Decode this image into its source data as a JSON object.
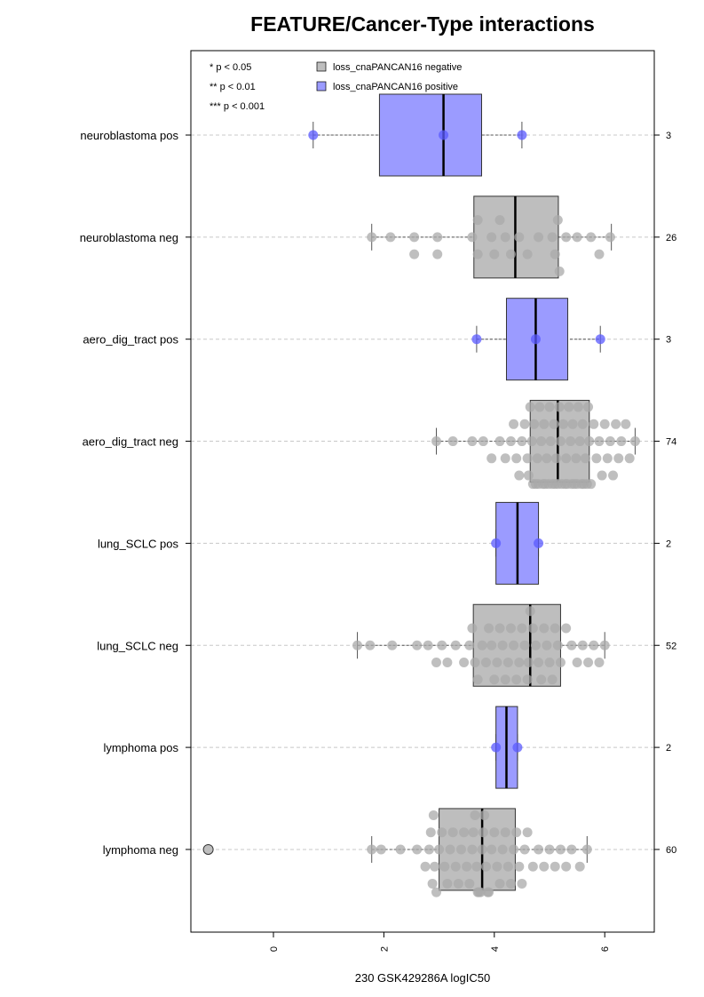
{
  "chart_data": {
    "type": "box",
    "title": "FEATURE/Cancer-Type interactions",
    "xlabel": "230 GSK429286A logIC50",
    "ylabel": "",
    "xlim": [
      -1.5,
      6.9
    ],
    "xticks": [
      0,
      2,
      4,
      6
    ],
    "grid": "horizontal dashed",
    "legend_position": "top-left",
    "significance_legend": [
      "* p < 0.05",
      "** p < 0.01",
      "*** p < 0.001"
    ],
    "series": [
      {
        "name": "loss_cnaPANCAN16 negative",
        "color": "#bebebe"
      },
      {
        "name": "loss_cnaPANCAN16 positive",
        "color": "#9b9bff"
      }
    ],
    "groups": [
      {
        "label": "neuroblastoma pos",
        "n": "3",
        "series": "positive",
        "whisker_low": 0.72,
        "q1": 1.92,
        "median": 3.08,
        "q3": 3.77,
        "whisker_high": 4.5,
        "outliers": [],
        "points": [
          0.72,
          3.08,
          4.5
        ]
      },
      {
        "label": "neuroblastoma neg",
        "n": "26",
        "series": "negative",
        "whisker_low": 1.78,
        "q1": 3.63,
        "median": 4.38,
        "q3": 5.16,
        "whisker_high": 6.12,
        "outliers": [],
        "points": [
          1.78,
          2.12,
          2.55,
          2.55,
          2.97,
          2.97,
          3.6,
          3.7,
          3.7,
          3.95,
          4.0,
          4.1,
          4.2,
          4.3,
          4.45,
          4.6,
          4.8,
          5.05,
          5.1,
          5.15,
          5.18,
          5.3,
          5.5,
          5.75,
          5.9,
          6.1
        ]
      },
      {
        "label": "aero_dig_tract pos",
        "n": "3",
        "series": "positive",
        "whisker_low": 3.68,
        "q1": 4.22,
        "median": 4.75,
        "q3": 5.33,
        "whisker_high": 5.92,
        "outliers": [],
        "points": [
          3.68,
          4.75,
          5.92
        ]
      },
      {
        "label": "aero_dig_tract neg",
        "n": "74",
        "series": "negative",
        "whisker_low": 2.95,
        "q1": 4.65,
        "median": 5.15,
        "q3": 5.72,
        "whisker_high": 6.55,
        "outliers": [],
        "points": [
          2.95,
          3.25,
          3.6,
          3.8,
          3.95,
          4.1,
          4.2,
          4.3,
          4.35,
          4.4,
          4.45,
          4.5,
          4.55,
          4.6,
          4.62,
          4.65,
          4.68,
          4.7,
          4.72,
          4.75,
          4.78,
          4.8,
          4.82,
          4.85,
          4.88,
          4.9,
          4.92,
          4.95,
          4.98,
          5.0,
          5.02,
          5.05,
          5.08,
          5.1,
          5.12,
          5.15,
          5.18,
          5.2,
          5.22,
          5.25,
          5.28,
          5.3,
          5.32,
          5.35,
          5.38,
          5.4,
          5.42,
          5.45,
          5.48,
          5.5,
          5.52,
          5.55,
          5.58,
          5.6,
          5.62,
          5.65,
          5.68,
          5.7,
          5.72,
          5.75,
          5.8,
          5.85,
          5.9,
          5.95,
          6.0,
          6.05,
          6.1,
          6.15,
          6.2,
          6.25,
          6.3,
          6.38,
          6.45,
          6.55
        ]
      },
      {
        "label": "lung_SCLC pos",
        "n": "2",
        "series": "positive",
        "whisker_low": 4.03,
        "q1": 4.03,
        "median": 4.42,
        "q3": 4.8,
        "whisker_high": 4.8,
        "outliers": [],
        "points": [
          4.03,
          4.8
        ]
      },
      {
        "label": "lung_SCLC neg",
        "n": "52",
        "series": "negative",
        "whisker_low": 1.52,
        "q1": 3.62,
        "median": 4.65,
        "q3": 5.2,
        "whisker_high": 6.0,
        "outliers": [],
        "points": [
          1.52,
          1.75,
          2.15,
          2.6,
          2.8,
          2.95,
          3.05,
          3.15,
          3.3,
          3.45,
          3.55,
          3.6,
          3.65,
          3.7,
          3.78,
          3.85,
          3.9,
          3.95,
          4.0,
          4.05,
          4.1,
          4.15,
          4.2,
          4.25,
          4.3,
          4.35,
          4.4,
          4.45,
          4.5,
          4.55,
          4.6,
          4.62,
          4.65,
          4.7,
          4.75,
          4.8,
          4.85,
          4.9,
          4.95,
          5.0,
          5.05,
          5.1,
          5.15,
          5.2,
          5.3,
          5.4,
          5.5,
          5.6,
          5.7,
          5.8,
          5.9,
          6.0
        ]
      },
      {
        "label": "lymphoma pos",
        "n": "2",
        "series": "positive",
        "whisker_low": 4.03,
        "q1": 4.03,
        "median": 4.22,
        "q3": 4.42,
        "whisker_high": 4.42,
        "outliers": [],
        "points": [
          4.03,
          4.42
        ]
      },
      {
        "label": "lymphoma neg",
        "n": "60",
        "series": "negative",
        "whisker_low": 1.78,
        "q1": 3.0,
        "median": 3.78,
        "q3": 4.38,
        "whisker_high": 5.68,
        "outliers": [
          -1.18
        ],
        "points": [
          1.78,
          1.95,
          2.3,
          2.6,
          2.75,
          2.82,
          2.85,
          2.88,
          2.9,
          2.92,
          2.95,
          3.0,
          3.05,
          3.1,
          3.15,
          3.2,
          3.25,
          3.3,
          3.35,
          3.4,
          3.45,
          3.5,
          3.55,
          3.6,
          3.62,
          3.65,
          3.68,
          3.7,
          3.72,
          3.75,
          3.78,
          3.8,
          3.82,
          3.85,
          3.88,
          3.9,
          3.95,
          4.0,
          4.05,
          4.1,
          4.15,
          4.2,
          4.25,
          4.3,
          4.35,
          4.4,
          4.45,
          4.5,
          4.55,
          4.6,
          4.7,
          4.8,
          4.9,
          5.0,
          5.1,
          5.2,
          5.3,
          5.4,
          5.55,
          5.68
        ]
      }
    ]
  }
}
